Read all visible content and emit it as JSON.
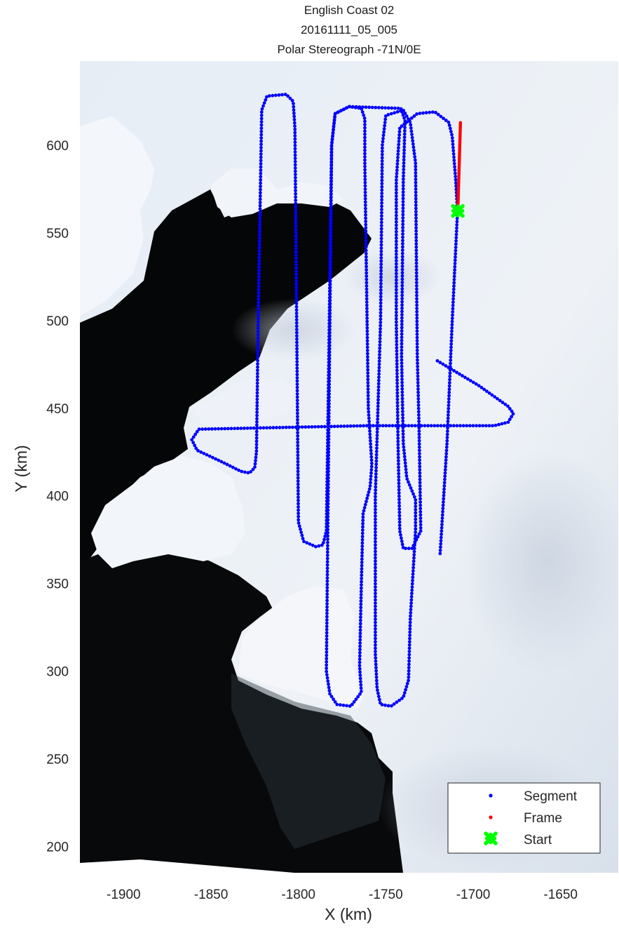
{
  "title_lines": [
    "English Coast 02",
    "20161111_05_005",
    "Polar Stereograph -71N/0E"
  ],
  "chart_data": {
    "type": "scatter",
    "xlabel": "X (km)",
    "ylabel": "Y (km)",
    "xlim": [
      -1925,
      -1617
    ],
    "ylim": [
      185,
      648
    ],
    "xticks": [
      -1900,
      -1850,
      -1800,
      -1750,
      -1700,
      -1650
    ],
    "yticks": [
      200,
      250,
      300,
      350,
      400,
      450,
      500,
      550,
      600
    ],
    "xtick_labels": [
      "-1900",
      "-1850",
      "-1800",
      "-1750",
      "-1700",
      "-1650"
    ],
    "ytick_labels": [
      "200",
      "250",
      "300",
      "350",
      "400",
      "450",
      "500",
      "550",
      "600"
    ],
    "grid": false,
    "background": "satellite imagery (ice shelf, land and open ocean)",
    "legend": {
      "placement": "bottom-right",
      "entries": [
        {
          "label": "Segment",
          "marker": "dot",
          "color": "#0000ff"
        },
        {
          "label": "Frame",
          "marker": "dot",
          "color": "#ff0000"
        },
        {
          "label": "Start",
          "marker": "x-cross",
          "color": "#00ff00"
        }
      ]
    },
    "series": [
      {
        "name": "Segment",
        "color": "#0000ff",
        "marker": "dot",
        "waypoints": [
          [
            -1720.5,
            477
          ],
          [
            -1697,
            463
          ],
          [
            -1680,
            451
          ],
          [
            -1677,
            447
          ],
          [
            -1680,
            442
          ],
          [
            -1688,
            440
          ],
          [
            -1760,
            440
          ],
          [
            -1857,
            438
          ],
          [
            -1861,
            432
          ],
          [
            -1858,
            426
          ],
          [
            -1843,
            419
          ],
          [
            -1833,
            414
          ],
          [
            -1828,
            413
          ],
          [
            -1825,
            416
          ],
          [
            -1824,
            425
          ],
          [
            -1823,
            500
          ],
          [
            -1821,
            620
          ],
          [
            -1818,
            628
          ],
          [
            -1807,
            629
          ],
          [
            -1803,
            625
          ],
          [
            -1802,
            610
          ],
          [
            -1801,
            500
          ],
          [
            -1800,
            385
          ],
          [
            -1797,
            374
          ],
          [
            -1790,
            371
          ],
          [
            -1786,
            372
          ],
          [
            -1784,
            380
          ],
          [
            -1783,
            450
          ],
          [
            -1781,
            600
          ],
          [
            -1779,
            618
          ],
          [
            -1771,
            622
          ],
          [
            -1764,
            621
          ],
          [
            -1762,
            615
          ],
          [
            -1762,
            590
          ],
          [
            -1760,
            450
          ],
          [
            -1758,
            418
          ],
          [
            -1759,
            405
          ],
          [
            -1763,
            390
          ],
          [
            -1764,
            350
          ],
          [
            -1765,
            303
          ],
          [
            -1764,
            288
          ],
          [
            -1770,
            280
          ],
          [
            -1778,
            281
          ],
          [
            -1782,
            287
          ],
          [
            -1784,
            300
          ],
          [
            -1783,
            400
          ],
          [
            -1782,
            500
          ],
          [
            -1781,
            600
          ],
          [
            -1779,
            618
          ],
          [
            -1771,
            622
          ],
          [
            -1741.4,
            621
          ],
          [
            -1739,
            614
          ],
          [
            -1740,
            580
          ],
          [
            -1741,
            480
          ],
          [
            -1740,
            430
          ],
          [
            -1738,
            410
          ],
          [
            -1733,
            398
          ],
          [
            -1733,
            380
          ],
          [
            -1736,
            330
          ],
          [
            -1737,
            295
          ],
          [
            -1740,
            285
          ],
          [
            -1747,
            280
          ],
          [
            -1753,
            281
          ],
          [
            -1755,
            290
          ],
          [
            -1756,
            310
          ],
          [
            -1756,
            400
          ],
          [
            -1753,
            500
          ],
          [
            -1752,
            600
          ],
          [
            -1750,
            617
          ],
          [
            -1740,
            620
          ],
          [
            -1736,
            613
          ],
          [
            -1733,
            590
          ],
          [
            -1732,
            480
          ],
          [
            -1731,
            440
          ],
          [
            -1730,
            380
          ],
          [
            -1735,
            370
          ],
          [
            -1740,
            370
          ],
          [
            -1742,
            380
          ],
          [
            -1743,
            430
          ],
          [
            -1744,
            500
          ],
          [
            -1744,
            580
          ],
          [
            -1742,
            610
          ],
          [
            -1732,
            618
          ],
          [
            -1722,
            619
          ],
          [
            -1714,
            613
          ],
          [
            -1712,
            605
          ],
          [
            -1710,
            580
          ],
          [
            -1709,
            562
          ],
          [
            -1712,
            500
          ],
          [
            -1715,
            430
          ],
          [
            -1719,
            366
          ]
        ]
      },
      {
        "name": "Frame",
        "color": "#ff0000",
        "marker": "dot",
        "points": [
          [
            -1708.8,
            562.5
          ],
          [
            -1707.3,
            613
          ]
        ]
      },
      {
        "name": "Start",
        "color": "#00ff00",
        "marker": "x-cross",
        "points": [
          [
            -1708.8,
            562.5
          ]
        ]
      }
    ]
  }
}
